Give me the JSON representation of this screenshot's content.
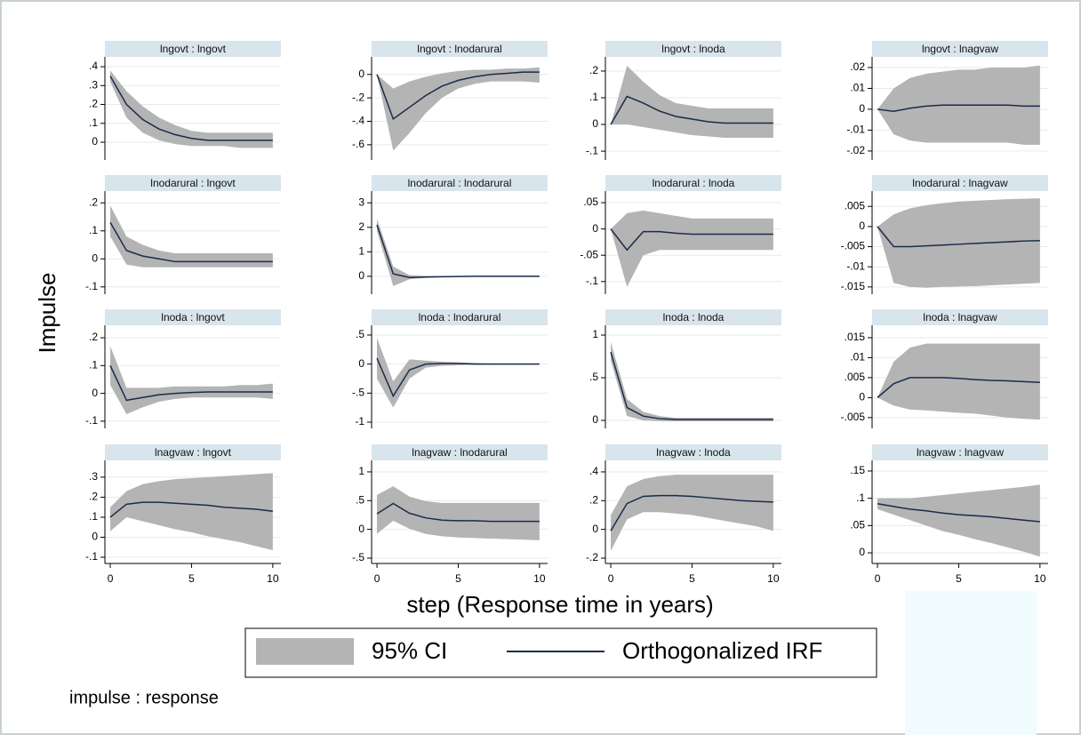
{
  "ylabel": "Impulse",
  "xlabel": "step (Response time in years)",
  "note": "impulse : response",
  "legend": [
    {
      "name": "95% CI",
      "color": "#b4b4b4"
    },
    {
      "name": "Orthogonalized IRF",
      "color": "#1a2b4c"
    }
  ],
  "chart_data": [
    {
      "type": "line",
      "title": "lngovt : lngovt",
      "x": [
        0,
        1,
        2,
        3,
        4,
        5,
        6,
        7,
        8,
        9,
        10
      ],
      "xlim": [
        -0.33,
        10.5
      ],
      "ylim": [
        -0.094,
        0.452
      ],
      "grid": true,
      "yticks": [
        {
          "value": 0.4,
          "label": ".4"
        },
        {
          "value": 0.3,
          "label": ".3"
        },
        {
          "value": 0.2,
          "label": ".2"
        },
        {
          "value": 0.1,
          "label": ".1"
        },
        0
      ],
      "values": [
        0.35,
        0.2,
        0.12,
        0.07,
        0.04,
        0.02,
        0.01,
        0.01,
        0.01,
        0.01,
        0.01
      ],
      "ci_upper": [
        0.38,
        0.27,
        0.19,
        0.13,
        0.09,
        0.06,
        0.05,
        0.05,
        0.05,
        0.05,
        0.05
      ],
      "ci_lower": [
        0.32,
        0.13,
        0.05,
        0.01,
        -0.01,
        -0.02,
        -0.02,
        -0.02,
        -0.03,
        -0.03,
        -0.03
      ]
    },
    {
      "type": "line",
      "title": "lngovt : lnodarural",
      "x": [
        0,
        1,
        2,
        3,
        4,
        5,
        6,
        7,
        8,
        9,
        10
      ],
      "xlim": [
        -0.33,
        10.5
      ],
      "ylim": [
        -0.73,
        0.15
      ],
      "grid": true,
      "yticks": [
        0,
        {
          "value": -0.2,
          "label": "-.2"
        },
        {
          "value": -0.4,
          "label": "-.4"
        },
        {
          "value": -0.6,
          "label": "-.6"
        }
      ],
      "values": [
        0,
        -0.38,
        -0.28,
        -0.18,
        -0.1,
        -0.05,
        -0.02,
        0,
        0.01,
        0.02,
        0.02
      ],
      "ci_upper": [
        0,
        -0.12,
        -0.06,
        -0.02,
        0.01,
        0.03,
        0.04,
        0.04,
        0.05,
        0.05,
        0.06
      ],
      "ci_lower": [
        0,
        -0.65,
        -0.5,
        -0.33,
        -0.2,
        -0.12,
        -0.08,
        -0.06,
        -0.06,
        -0.06,
        -0.07
      ]
    },
    {
      "type": "line",
      "title": "lngovt : lnoda",
      "x": [
        0,
        1,
        2,
        3,
        4,
        5,
        6,
        7,
        8,
        9,
        10
      ],
      "xlim": [
        -0.33,
        10.5
      ],
      "ylim": [
        -0.133,
        0.253
      ],
      "grid": true,
      "yticks": [
        {
          "value": 0.2,
          "label": ".2"
        },
        {
          "value": 0.1,
          "label": ".1"
        },
        0,
        {
          "value": -0.1,
          "label": "-.1"
        }
      ],
      "values": [
        0,
        0.105,
        0.08,
        0.05,
        0.03,
        0.02,
        0.01,
        0.005,
        0.005,
        0.005,
        0.005
      ],
      "ci_upper": [
        0,
        0.22,
        0.16,
        0.11,
        0.08,
        0.07,
        0.06,
        0.06,
        0.06,
        0.06,
        0.06
      ],
      "ci_lower": [
        0,
        0,
        -0.01,
        -0.02,
        -0.03,
        -0.04,
        -0.045,
        -0.05,
        -0.05,
        -0.05,
        -0.05
      ]
    },
    {
      "type": "line",
      "title": "lngovt : lnagvaw",
      "x": [
        0,
        1,
        2,
        3,
        4,
        5,
        6,
        7,
        8,
        9,
        10
      ],
      "xlim": [
        -0.33,
        10.5
      ],
      "ylim": [
        -0.0243,
        0.0251
      ],
      "grid": true,
      "yticks": [
        {
          "value": 0.02,
          "label": ".02"
        },
        {
          "value": 0.01,
          "label": ".01"
        },
        0,
        {
          "value": -0.01,
          "label": "-.01"
        },
        {
          "value": -0.02,
          "label": "-.02"
        }
      ],
      "values": [
        0,
        -0.001,
        0.0005,
        0.0015,
        0.002,
        0.002,
        0.002,
        0.002,
        0.002,
        0.0015,
        0.0015
      ],
      "ci_upper": [
        0,
        0.01,
        0.015,
        0.017,
        0.018,
        0.019,
        0.019,
        0.02,
        0.02,
        0.02,
        0.021
      ],
      "ci_lower": [
        0,
        -0.012,
        -0.015,
        -0.016,
        -0.016,
        -0.016,
        -0.016,
        -0.016,
        -0.016,
        -0.017,
        -0.017
      ]
    },
    {
      "type": "line",
      "title": "lnodarural : lngovt",
      "x": [
        0,
        1,
        2,
        3,
        4,
        5,
        6,
        7,
        8,
        9,
        10
      ],
      "xlim": [
        -0.33,
        10.5
      ],
      "ylim": [
        -0.126,
        0.242
      ],
      "grid": true,
      "yticks": [
        {
          "value": 0.2,
          "label": ".2"
        },
        {
          "value": 0.1,
          "label": ".1"
        },
        0,
        {
          "value": -0.1,
          "label": "-.1"
        }
      ],
      "values": [
        0.13,
        0.03,
        0.01,
        0,
        -0.01,
        -0.01,
        -0.01,
        -0.01,
        -0.01,
        -0.01,
        -0.01
      ],
      "ci_upper": [
        0.19,
        0.08,
        0.05,
        0.03,
        0.02,
        0.02,
        0.02,
        0.02,
        0.02,
        0.02,
        0.02
      ],
      "ci_lower": [
        0.08,
        -0.02,
        -0.03,
        -0.03,
        -0.03,
        -0.03,
        -0.03,
        -0.03,
        -0.03,
        -0.03,
        -0.03
      ]
    },
    {
      "type": "line",
      "title": "lnodarural : lnodarural",
      "x": [
        0,
        1,
        2,
        3,
        4,
        5,
        6,
        7,
        8,
        9,
        10
      ],
      "xlim": [
        -0.33,
        10.5
      ],
      "ylim": [
        -0.73,
        3.48
      ],
      "grid": true,
      "yticks": [
        3,
        2,
        1,
        0
      ],
      "values": [
        2.1,
        0.1,
        -0.05,
        -0.03,
        -0.02,
        -0.01,
        0,
        0,
        0,
        0,
        0
      ],
      "ci_upper": [
        2.35,
        0.4,
        0.05,
        0.02,
        0.01,
        0.01,
        0,
        0,
        0,
        0,
        0
      ],
      "ci_lower": [
        1.85,
        -0.4,
        -0.12,
        -0.06,
        -0.03,
        -0.02,
        -0.01,
        0,
        0,
        0,
        0
      ]
    },
    {
      "type": "line",
      "title": "lnodarural : lnoda",
      "x": [
        0,
        1,
        2,
        3,
        4,
        5,
        6,
        7,
        8,
        9,
        10
      ],
      "xlim": [
        -0.33,
        10.5
      ],
      "ylim": [
        -0.124,
        0.072
      ],
      "grid": true,
      "yticks": [
        {
          "value": 0.05,
          "label": ".05"
        },
        0,
        {
          "value": -0.05,
          "label": "-.05"
        },
        {
          "value": -0.1,
          "label": "-.1"
        }
      ],
      "values": [
        0,
        -0.04,
        -0.005,
        -0.005,
        -0.008,
        -0.01,
        -0.01,
        -0.01,
        -0.01,
        -0.01,
        -0.01
      ],
      "ci_upper": [
        0,
        0.03,
        0.035,
        0.03,
        0.025,
        0.02,
        0.02,
        0.02,
        0.02,
        0.02,
        0.02
      ],
      "ci_lower": [
        0,
        -0.11,
        -0.05,
        -0.04,
        -0.04,
        -0.04,
        -0.04,
        -0.04,
        -0.04,
        -0.04,
        -0.04
      ]
    },
    {
      "type": "line",
      "title": "lnodarural : lnagvaw",
      "x": [
        0,
        1,
        2,
        3,
        4,
        5,
        6,
        7,
        8,
        9,
        10
      ],
      "xlim": [
        -0.33,
        10.5
      ],
      "ylim": [
        -0.0168,
        0.0088
      ],
      "grid": true,
      "yticks": [
        {
          "value": 0.005,
          "label": ".005"
        },
        0,
        {
          "value": -0.005,
          "label": "-.005"
        },
        {
          "value": -0.01,
          "label": "-.01"
        },
        {
          "value": -0.015,
          "label": "-.015"
        }
      ],
      "values": [
        0,
        -0.005,
        -0.005,
        -0.0048,
        -0.0046,
        -0.0044,
        -0.0042,
        -0.004,
        -0.0038,
        -0.0036,
        -0.0035
      ],
      "ci_upper": [
        0,
        0.003,
        0.0045,
        0.0053,
        0.0058,
        0.0062,
        0.0064,
        0.0066,
        0.0068,
        0.0069,
        0.007
      ],
      "ci_lower": [
        0,
        -0.014,
        -0.015,
        -0.0152,
        -0.015,
        -0.0149,
        -0.0148,
        -0.0146,
        -0.0144,
        -0.0142,
        -0.014
      ]
    },
    {
      "type": "line",
      "title": "lnoda : lngovt",
      "x": [
        0,
        1,
        2,
        3,
        4,
        5,
        6,
        7,
        8,
        9,
        10
      ],
      "xlim": [
        -0.33,
        10.5
      ],
      "ylim": [
        -0.126,
        0.245
      ],
      "grid": true,
      "yticks": [
        {
          "value": 0.2,
          "label": ".2"
        },
        {
          "value": 0.1,
          "label": ".1"
        },
        0,
        {
          "value": -0.1,
          "label": "-.1"
        }
      ],
      "values": [
        0.1,
        -0.025,
        -0.015,
        -0.005,
        0,
        0.003,
        0.005,
        0.005,
        0.005,
        0.005,
        0.005
      ],
      "ci_upper": [
        0.17,
        0.02,
        0.02,
        0.02,
        0.025,
        0.025,
        0.025,
        0.025,
        0.03,
        0.03,
        0.035
      ],
      "ci_lower": [
        0.03,
        -0.075,
        -0.05,
        -0.03,
        -0.02,
        -0.015,
        -0.015,
        -0.015,
        -0.015,
        -0.015,
        -0.02
      ]
    },
    {
      "type": "line",
      "title": "lnoda : lnodarural",
      "x": [
        0,
        1,
        2,
        3,
        4,
        5,
        6,
        7,
        8,
        9,
        10
      ],
      "xlim": [
        -0.33,
        10.5
      ],
      "ylim": [
        -1.107,
        0.668
      ],
      "grid": true,
      "yticks": [
        {
          "value": 0.5,
          "label": ".5"
        },
        0,
        {
          "value": -0.5,
          "label": "-.5"
        },
        -1
      ],
      "values": [
        0.1,
        -0.55,
        -0.1,
        0,
        0.01,
        0.01,
        0,
        0,
        0,
        0,
        0
      ],
      "ci_upper": [
        0.45,
        -0.3,
        0.08,
        0.06,
        0.04,
        0.03,
        0.02,
        0.01,
        0.01,
        0.01,
        0
      ],
      "ci_lower": [
        -0.25,
        -0.75,
        -0.25,
        -0.06,
        -0.03,
        -0.02,
        -0.01,
        -0.01,
        -0.01,
        -0.01,
        0
      ]
    },
    {
      "type": "line",
      "title": "lnoda : lnoda",
      "x": [
        0,
        1,
        2,
        3,
        4,
        5,
        6,
        7,
        8,
        9,
        10
      ],
      "xlim": [
        -0.33,
        10.5
      ],
      "ylim": [
        -0.094,
        1.115
      ],
      "grid": true,
      "yticks": [
        1,
        {
          "value": 0.5,
          "label": ".5"
        },
        0
      ],
      "values": [
        0.8,
        0.15,
        0.05,
        0.02,
        0.01,
        0.01,
        0.01,
        0.01,
        0.01,
        0.01,
        0.01
      ],
      "ci_upper": [
        0.92,
        0.25,
        0.1,
        0.05,
        0.03,
        0.03,
        0.03,
        0.03,
        0.03,
        0.03,
        0.03
      ],
      "ci_lower": [
        0.7,
        0.05,
        0,
        -0.01,
        -0.01,
        -0.01,
        -0.01,
        -0.01,
        -0.01,
        -0.01,
        -0.01
      ]
    },
    {
      "type": "line",
      "title": "lnoda : lnagvaw",
      "x": [
        0,
        1,
        2,
        3,
        4,
        5,
        6,
        7,
        8,
        9,
        10
      ],
      "xlim": [
        -0.33,
        10.5
      ],
      "ylim": [
        -0.0077,
        0.0181
      ],
      "grid": true,
      "yticks": [
        {
          "value": 0.015,
          "label": ".015"
        },
        {
          "value": 0.01,
          "label": ".01"
        },
        {
          "value": 0.005,
          "label": ".005"
        },
        0,
        {
          "value": -0.005,
          "label": "-.005"
        }
      ],
      "values": [
        0,
        0.0035,
        0.005,
        0.005,
        0.005,
        0.0048,
        0.0045,
        0.0043,
        0.0042,
        0.004,
        0.0038
      ],
      "ci_upper": [
        0,
        0.009,
        0.0125,
        0.0135,
        0.0135,
        0.0135,
        0.0135,
        0.0135,
        0.0135,
        0.0135,
        0.0135
      ],
      "ci_lower": [
        0,
        -0.002,
        -0.003,
        -0.0032,
        -0.0035,
        -0.0038,
        -0.004,
        -0.0045,
        -0.005,
        -0.0053,
        -0.0055
      ]
    },
    {
      "type": "line",
      "title": "lnagvaw : lngovt",
      "x": [
        0,
        1,
        2,
        3,
        4,
        5,
        6,
        7,
        8,
        9,
        10
      ],
      "xlim": [
        -0.33,
        10.5
      ],
      "ylim": [
        -0.131,
        0.384
      ],
      "grid": true,
      "xticks": [
        0,
        5,
        10
      ],
      "yticks": [
        {
          "value": 0.3,
          "label": ".3"
        },
        {
          "value": 0.2,
          "label": ".2"
        },
        {
          "value": 0.1,
          "label": ".1"
        },
        0,
        {
          "value": -0.1,
          "label": "-.1"
        }
      ],
      "values": [
        0.1,
        0.165,
        0.175,
        0.175,
        0.17,
        0.165,
        0.16,
        0.15,
        0.145,
        0.14,
        0.13
      ],
      "ci_upper": [
        0.15,
        0.23,
        0.265,
        0.28,
        0.29,
        0.295,
        0.3,
        0.305,
        0.31,
        0.315,
        0.32
      ],
      "ci_lower": [
        0.03,
        0.1,
        0.08,
        0.06,
        0.04,
        0.025,
        0.005,
        -0.01,
        -0.025,
        -0.045,
        -0.065
      ]
    },
    {
      "type": "line",
      "title": "lnagvaw : lnodarural",
      "x": [
        0,
        1,
        2,
        3,
        4,
        5,
        6,
        7,
        8,
        9,
        10
      ],
      "xlim": [
        -0.33,
        10.5
      ],
      "ylim": [
        -0.593,
        1.2
      ],
      "grid": true,
      "xticks": [
        0,
        5,
        10
      ],
      "yticks": [
        1,
        {
          "value": 0.5,
          "label": ".5"
        },
        0,
        {
          "value": -0.5,
          "label": "-.5"
        }
      ],
      "values": [
        0.27,
        0.45,
        0.28,
        0.2,
        0.16,
        0.15,
        0.15,
        0.14,
        0.14,
        0.14,
        0.14
      ],
      "ci_upper": [
        0.6,
        0.75,
        0.57,
        0.49,
        0.46,
        0.46,
        0.46,
        0.46,
        0.46,
        0.46,
        0.46
      ],
      "ci_lower": [
        -0.08,
        0.15,
        0.01,
        -0.08,
        -0.12,
        -0.14,
        -0.15,
        -0.16,
        -0.17,
        -0.18,
        -0.19
      ]
    },
    {
      "type": "line",
      "title": "lnagvaw : lnoda",
      "x": [
        0,
        1,
        2,
        3,
        4,
        5,
        6,
        7,
        8,
        9,
        10
      ],
      "xlim": [
        -0.33,
        10.5
      ],
      "ylim": [
        -0.237,
        0.48
      ],
      "grid": true,
      "xticks": [
        0,
        5,
        10
      ],
      "yticks": [
        {
          "value": 0.4,
          "label": ".4"
        },
        {
          "value": 0.2,
          "label": ".2"
        },
        0,
        {
          "value": -0.2,
          "label": "-.2"
        }
      ],
      "values": [
        -0.01,
        0.18,
        0.23,
        0.235,
        0.235,
        0.23,
        0.22,
        0.21,
        0.2,
        0.195,
        0.19
      ],
      "ci_upper": [
        0.1,
        0.3,
        0.35,
        0.37,
        0.38,
        0.38,
        0.38,
        0.38,
        0.38,
        0.38,
        0.38
      ],
      "ci_lower": [
        -0.15,
        0.07,
        0.12,
        0.12,
        0.11,
        0.1,
        0.08,
        0.06,
        0.04,
        0.02,
        -0.01
      ]
    },
    {
      "type": "line",
      "title": "lnagvaw : lnagvaw",
      "x": [
        0,
        1,
        2,
        3,
        4,
        5,
        6,
        7,
        8,
        9,
        10
      ],
      "xlim": [
        -0.33,
        10.5
      ],
      "ylim": [
        -0.0195,
        0.1695
      ],
      "grid": true,
      "xticks": [
        0,
        5,
        10
      ],
      "yticks": [
        {
          "value": 0.15,
          "label": ".15"
        },
        {
          "value": 0.1,
          "label": ".1"
        },
        {
          "value": 0.05,
          "label": ".05"
        },
        0
      ],
      "values": [
        0.09,
        0.085,
        0.08,
        0.077,
        0.073,
        0.07,
        0.068,
        0.066,
        0.063,
        0.06,
        0.057
      ],
      "ci_upper": [
        0.1,
        0.1,
        0.1,
        0.103,
        0.106,
        0.109,
        0.112,
        0.115,
        0.118,
        0.121,
        0.125
      ],
      "ci_lower": [
        0.08,
        0.07,
        0.06,
        0.05,
        0.04,
        0.033,
        0.025,
        0.018,
        0.01,
        0.002,
        -0.007
      ]
    }
  ]
}
